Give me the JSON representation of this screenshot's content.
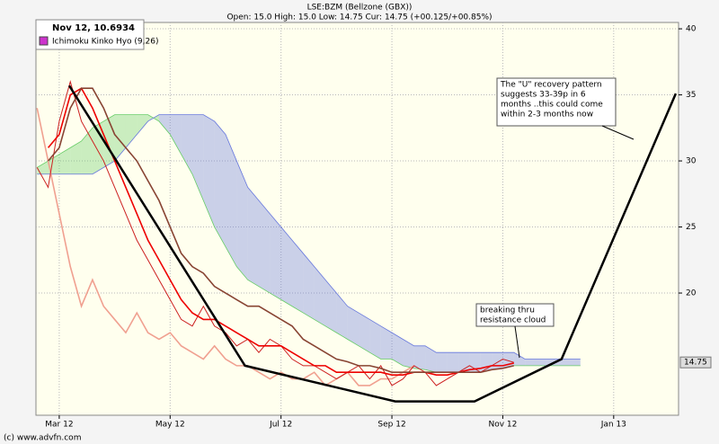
{
  "header": {
    "symbol": "LSE:BZM (Bellzone (GBX))",
    "quote": "Open: 15.0 High: 15.0 Low: 14.75 Cur: 14.75 (+00.125/+00.85%)"
  },
  "legend": {
    "date_value": "Nov 12, 10.6934",
    "indicator": "Ichimoku Kinko Hyo (9,26)",
    "indicator_color": "#cc33cc"
  },
  "footer": "(c) www.advfn.com",
  "chart_data": {
    "type": "line",
    "xlim": [
      2.58,
      14.17
    ],
    "xticks": [
      {
        "value": 3,
        "label": "Mar 12"
      },
      {
        "value": 5,
        "label": "May 12"
      },
      {
        "value": 7,
        "label": "Jul 12"
      },
      {
        "value": 9,
        "label": "Sep 12"
      },
      {
        "value": 11,
        "label": "Nov 12"
      },
      {
        "value": 13,
        "label": "Jan 13"
      }
    ],
    "ylim": [
      10.75,
      40.48
    ],
    "yticks": [
      20,
      25,
      30,
      35,
      40
    ],
    "grid": true,
    "current_price": 14.75,
    "x": [
      2.6,
      2.8,
      3.0,
      3.2,
      3.4,
      3.6,
      3.8,
      4.0,
      4.2,
      4.4,
      4.6,
      4.8,
      5.0,
      5.2,
      5.4,
      5.6,
      5.8,
      6.0,
      6.2,
      6.4,
      6.6,
      6.8,
      7.0,
      7.2,
      7.4,
      7.6,
      7.8,
      8.0,
      8.2,
      8.4,
      8.6,
      8.8,
      9.0,
      9.2,
      9.4,
      9.6,
      9.8,
      10.0,
      10.2,
      10.4,
      10.6,
      10.8,
      11.0,
      11.2,
      11.4,
      11.6,
      11.8,
      12.0,
      12.2,
      12.4
    ],
    "cloud": {
      "span_a": {
        "color": "#66cc66",
        "values": [
          29.5,
          30,
          30.5,
          31,
          31.5,
          32.5,
          33,
          33.5,
          33.5,
          33.5,
          33.5,
          33,
          32,
          30.5,
          29,
          27,
          25,
          23.5,
          22,
          21,
          20.5,
          20,
          19.5,
          19,
          18.5,
          18,
          17.5,
          17,
          16.5,
          16,
          15.5,
          15,
          15,
          14.5,
          14.3,
          14.2,
          14,
          14,
          14,
          14,
          14,
          14.2,
          14.3,
          14.5,
          14.5,
          14.5,
          14.5,
          14.5,
          14.5,
          14.5
        ]
      },
      "span_b": {
        "color": "#6677dd",
        "values": [
          29,
          29,
          29,
          29,
          29,
          29,
          29.5,
          30,
          31,
          32,
          33,
          33.5,
          33.5,
          33.5,
          33.5,
          33.5,
          33,
          32,
          30,
          28,
          27,
          26,
          25,
          24,
          23,
          22,
          21,
          20,
          19,
          18.5,
          18,
          17.5,
          17,
          16.5,
          16,
          16,
          15.5,
          15.5,
          15.5,
          15.5,
          15.5,
          15.5,
          15.5,
          15.5,
          15,
          15,
          15,
          15,
          15,
          15
        ]
      }
    },
    "series": [
      {
        "color": "#f0a090",
        "values": [
          34,
          30,
          26,
          22,
          19,
          21,
          19,
          18,
          17,
          18.5,
          17,
          16.5,
          17,
          16,
          15.5,
          15,
          16,
          15,
          14.5,
          14.5,
          14,
          13.5,
          14,
          13.5,
          13.5,
          14,
          13,
          13.5,
          14,
          13,
          13,
          13.5,
          13.5,
          14,
          14.5,
          null,
          null,
          null,
          null,
          null,
          null,
          null,
          null,
          null,
          null,
          null,
          null,
          null,
          null,
          null
        ]
      },
      {
        "color": "#cc2020",
        "values": [
          29.5,
          28,
          33,
          36,
          33,
          31.5,
          30,
          28,
          26,
          24,
          22.5,
          21,
          19.5,
          18,
          17.5,
          19,
          17.5,
          17,
          16,
          16.5,
          15.5,
          16.5,
          16,
          15,
          14.5,
          14.5,
          14,
          13.5,
          14,
          14.5,
          13.5,
          14.5,
          13,
          13.5,
          14.5,
          14,
          13,
          13.5,
          14,
          14.5,
          14,
          14.5,
          15,
          14.75,
          null,
          null,
          null,
          null,
          null,
          null
        ]
      },
      {
        "color": "#ee0000",
        "values": [
          null,
          31,
          32,
          35,
          35.5,
          34,
          32,
          30,
          28,
          26,
          24,
          22.5,
          21,
          19.5,
          18.5,
          18,
          18,
          17.5,
          17,
          16.5,
          16,
          16,
          16,
          15.5,
          15,
          14.5,
          14.5,
          14,
          14,
          14,
          14,
          14,
          13.8,
          13.8,
          14,
          14,
          13.8,
          13.8,
          14,
          14.2,
          14.3,
          14.5,
          14.5,
          14.7,
          null,
          null,
          null,
          null,
          null,
          null
        ]
      },
      {
        "color": "#884433",
        "values": [
          null,
          30,
          31,
          34,
          35.5,
          35.5,
          34,
          32,
          31,
          30,
          28.5,
          27,
          25,
          23,
          22,
          21.5,
          20.5,
          20,
          19.5,
          19,
          19,
          18.5,
          18,
          17.5,
          16.5,
          16,
          15.5,
          15,
          14.8,
          14.5,
          14.5,
          14.3,
          14,
          14,
          14,
          14,
          14,
          14,
          14,
          14,
          14,
          14.2,
          14.3,
          14.5,
          null,
          null,
          null,
          null,
          null,
          null
        ]
      }
    ],
    "trend_line": {
      "color": "#000000",
      "x": [
        3.18,
        6.35,
        9.06,
        10.49,
        12.06,
        14.12
      ],
      "values": [
        35.7,
        14.5,
        11.8,
        11.8,
        15,
        35.1
      ]
    },
    "annotations": [
      {
        "lines": [
          "The \"U\" recovery pattern",
          "suggests 33-39p in 6",
          "months ..this could come",
          "within 2-3 months now"
        ]
      },
      {
        "lines": [
          "breaking thru",
          "resistance cloud"
        ]
      }
    ]
  }
}
